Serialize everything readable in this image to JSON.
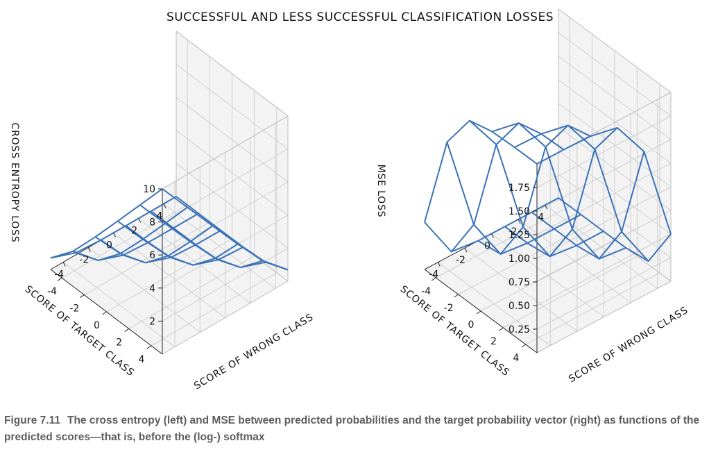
{
  "figure_title": "SUCCESSFUL AND LESS SUCCESSFUL CLASSIFICATION LOSSES",
  "caption": {
    "number": "Figure 7.11",
    "text": "The cross entropy (left) and MSE between predicted probabilities and the target probability vector (right) as functions of the predicted scores—that is, before the (log-) softmax"
  },
  "colors": {
    "surface": "#3a72b8",
    "grid": "#cfcfcf",
    "pane": "#f3f3f3"
  },
  "chart_data": [
    {
      "type": "surface",
      "zlabel": "CROSS ENTROPY LOSS",
      "xlabel": "SCORE OF WRONG CLASS",
      "ylabel": "SCORE OF TARGET CLASS",
      "x": [
        -5,
        -3,
        -1,
        1,
        3,
        5
      ],
      "y": [
        -5,
        -3,
        -1,
        1,
        3,
        5
      ],
      "z": [
        [
          0.693,
          0.127,
          0.018,
          0.002,
          0.0,
          0.0
        ],
        [
          2.127,
          0.693,
          0.127,
          0.018,
          0.002,
          0.0
        ],
        [
          4.018,
          2.127,
          0.693,
          0.127,
          0.018,
          0.002
        ],
        [
          6.002,
          4.018,
          2.127,
          0.693,
          0.127,
          0.018
        ],
        [
          8.0,
          6.002,
          4.018,
          2.127,
          0.693,
          0.127
        ],
        [
          10.0,
          8.0,
          6.002,
          4.018,
          2.127,
          0.693
        ]
      ],
      "xticks": [
        "-4",
        "-2",
        "0",
        "2",
        "4"
      ],
      "xtick_values": [
        -4,
        -2,
        0,
        2,
        4
      ],
      "yticks": [
        "-4",
        "-2",
        "0",
        "2",
        "4"
      ],
      "ytick_values": [
        -4,
        -2,
        0,
        2,
        4
      ],
      "zticks": [
        "2",
        "4",
        "6",
        "8",
        "10"
      ],
      "ztick_values": [
        2,
        4,
        6,
        8,
        10
      ],
      "xlim": [
        -5,
        5
      ],
      "ylim": [
        -5,
        5
      ],
      "zlim": [
        0,
        10
      ]
    },
    {
      "type": "surface",
      "zlabel": "MSE LOSS",
      "xlabel": "SCORE OF WRONG CLASS",
      "ylabel": "SCORE OF TARGET CLASS",
      "x": [
        -5,
        -3,
        -1,
        1,
        3,
        5
      ],
      "y": [
        -5,
        -3,
        -1,
        1,
        3,
        5
      ],
      "z": [
        [
          0.5,
          0.036,
          0.001,
          0.0,
          0.0,
          0.0
        ],
        [
          1.524,
          0.5,
          0.036,
          0.001,
          0.0,
          0.0
        ],
        [
          1.929,
          1.524,
          0.5,
          0.036,
          0.001,
          0.0
        ],
        [
          1.99,
          1.929,
          1.524,
          0.5,
          0.036,
          0.001
        ],
        [
          1.999,
          1.99,
          1.929,
          1.524,
          0.5,
          0.036
        ],
        [
          2.0,
          1.999,
          1.99,
          1.929,
          1.524,
          0.5
        ]
      ],
      "xticks": [
        "-4",
        "-2",
        "0",
        "2",
        "4"
      ],
      "xtick_values": [
        -4,
        -2,
        0,
        2,
        4
      ],
      "yticks": [
        "-4",
        "-2",
        "0",
        "2",
        "4"
      ],
      "ytick_values": [
        -4,
        -2,
        0,
        2,
        4
      ],
      "zticks": [
        "0.25",
        "0.50",
        "0.75",
        "1.00",
        "1.25",
        "1.50",
        "1.75"
      ],
      "ztick_values": [
        0.25,
        0.5,
        0.75,
        1.0,
        1.25,
        1.5,
        1.75
      ],
      "xlim": [
        -5,
        5
      ],
      "ylim": [
        -5,
        5
      ],
      "zlim": [
        0,
        2
      ]
    }
  ]
}
